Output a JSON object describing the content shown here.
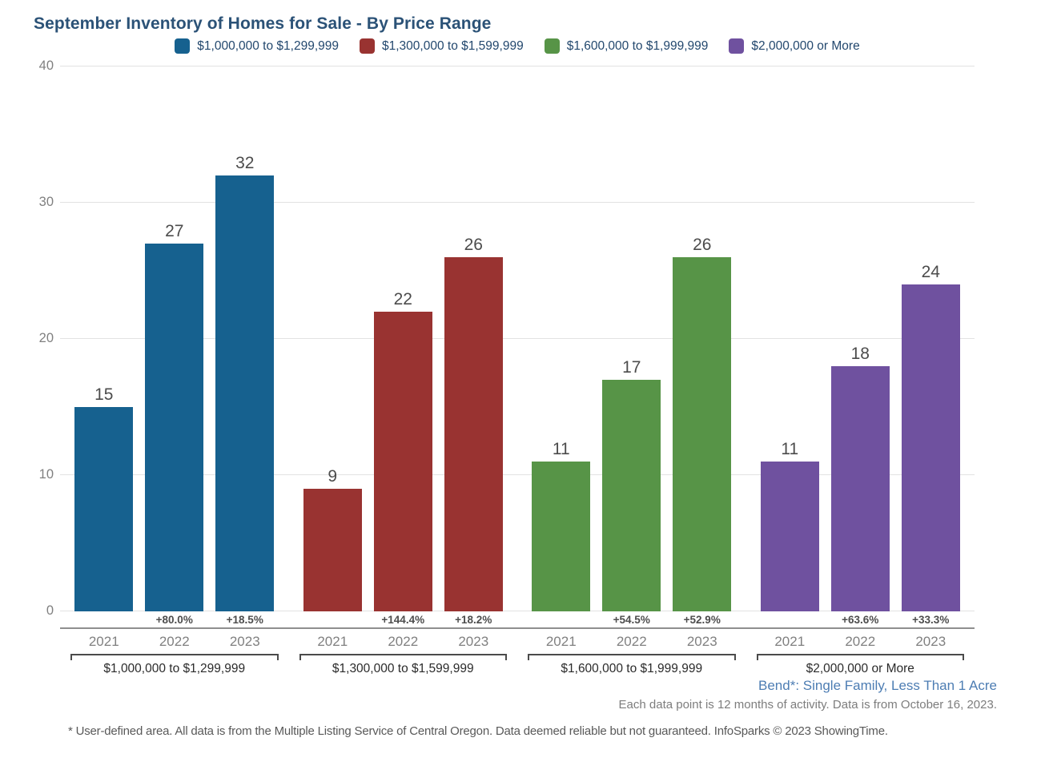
{
  "header": {
    "title": "September Inventory of Homes for Sale - By Price Range"
  },
  "legend": {
    "items": [
      {
        "label": "$1,000,000 to $1,299,999",
        "color": "#16618f"
      },
      {
        "label": "$1,300,000 to $1,599,999",
        "color": "#993331"
      },
      {
        "label": "$1,600,000 to $1,999,999",
        "color": "#579447"
      },
      {
        "label": "$2,000,000 or More",
        "color": "#6f519f"
      }
    ]
  },
  "chart_data": {
    "type": "bar",
    "title": "September Inventory of Homes for Sale - By Price Range",
    "xlabel": "",
    "ylabel": "",
    "ylim": [
      0,
      40
    ],
    "yticks": [
      0,
      10,
      20,
      30,
      40
    ],
    "grid": "horizontal",
    "legend_position": "top",
    "categories": [
      "2021",
      "2022",
      "2023"
    ],
    "groups": [
      {
        "label": "$1,000,000 to $1,299,999",
        "color": "#16618f",
        "values": [
          15,
          27,
          32
        ],
        "pct_change": [
          "",
          "+80.0%",
          "+18.5%"
        ]
      },
      {
        "label": "$1,300,000 to $1,599,999",
        "color": "#993331",
        "values": [
          9,
          22,
          26
        ],
        "pct_change": [
          "",
          "+144.4%",
          "+18.2%"
        ]
      },
      {
        "label": "$1,600,000 to $1,999,999",
        "color": "#579447",
        "values": [
          11,
          17,
          26
        ],
        "pct_change": [
          "",
          "+54.5%",
          "+52.9%"
        ]
      },
      {
        "label": "$2,000,000 or More",
        "color": "#6f519f",
        "values": [
          11,
          18,
          24
        ],
        "pct_change": [
          "",
          "+63.6%",
          "+33.3%"
        ]
      }
    ]
  },
  "footnotes": {
    "location": "Bend*: Single Family, Less Than 1 Acre",
    "data_period": "Each data point is 12 months of activity. Data is from October 16, 2023.",
    "disclaimer": "* User-defined area. All data is from the Multiple Listing Service of Central Oregon. Data deemed reliable but not guaranteed. InfoSparks © 2023 ShowingTime."
  },
  "colors": {
    "title_text": "#2b5277",
    "legend_text": "#23486e",
    "axis_text": "#808080",
    "value_text": "#4c4c4c",
    "gridline": "#e2e2e2",
    "axis_line": "#8f8f8f",
    "location_text": "#4d7db3"
  }
}
